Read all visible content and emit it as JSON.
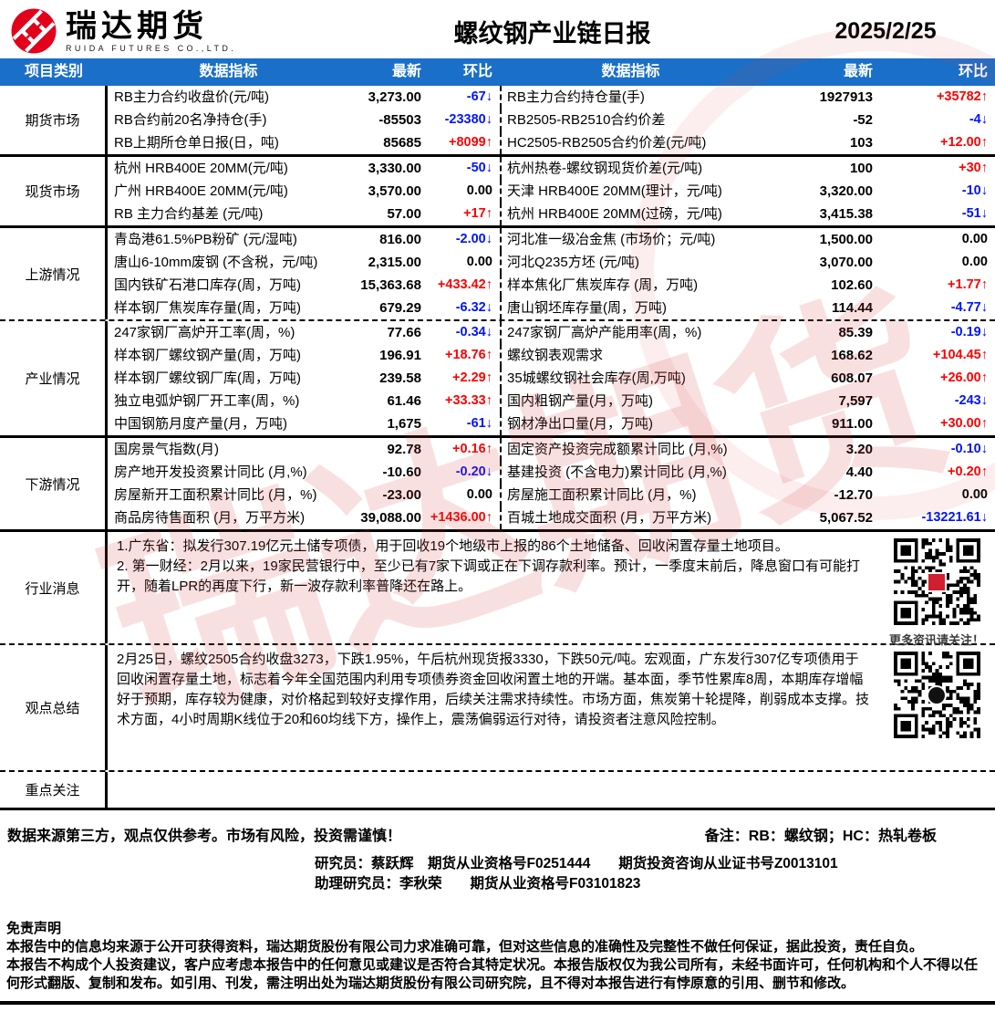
{
  "colors": {
    "header_bg": "#1a6fc9",
    "up_red": "#fe0000",
    "down_blue": "#0014ff",
    "logo_red": "#e3001b"
  },
  "header": {
    "brand_name": "瑞达期货",
    "brand_sub": "RUIDA FUTURES CO.,LTD.",
    "title": "螺纹钢产业链日报",
    "date": "2025/2/25"
  },
  "watermark": "瑞达期货",
  "table": {
    "columns": {
      "category": "项目类别",
      "indicator": "数据指标",
      "latest": "最新",
      "change": "环比"
    },
    "sections": [
      {
        "name": "期货市场",
        "rows": [
          {
            "left": {
              "label": "RB主力合约收盘价(元/吨)",
              "value": "3,273.00",
              "change": "-67↓",
              "dir": "down"
            },
            "right": {
              "label": "RB主力合约持仓量(手)",
              "value": "1927913",
              "change": "+35782↑",
              "dir": "up"
            }
          },
          {
            "left": {
              "label": "RB合约前20名净持仓(手)",
              "value": "-85503",
              "change": "-23380↓",
              "dir": "down"
            },
            "right": {
              "label": "RB2505-RB2510合约价差",
              "value": "-52",
              "change": "-4↓",
              "dir": "down"
            }
          },
          {
            "left": {
              "label": "RB上期所仓单日报(日，吨)",
              "value": "85685",
              "change": "+8099↑",
              "dir": "up"
            },
            "right": {
              "label": "HC2505-RB2505合约价差(元/吨)",
              "value": "103",
              "change": "+12.00↑",
              "dir": "up"
            }
          }
        ]
      },
      {
        "name": "现货市场",
        "rows": [
          {
            "left": {
              "label": "杭州 HRB400E 20MM(元/吨)",
              "value": "3,330.00",
              "change": "-50↓",
              "dir": "down"
            },
            "right": {
              "label": "杭州热卷-螺纹钢现货价差(元/吨)",
              "value": "100",
              "change": "+30↑",
              "dir": "up"
            }
          },
          {
            "left": {
              "label": "广州 HRB400E 20MM(元/吨)",
              "value": "3,570.00",
              "change": "0.00",
              "dir": "flat"
            },
            "right": {
              "label": "天津 HRB400E 20MM(理计，元/吨)",
              "value": "3,320.00",
              "change": "-10↓",
              "dir": "down"
            }
          },
          {
            "left": {
              "label": "RB 主力合约基差 (元/吨)",
              "value": "57.00",
              "change": "+17↑",
              "dir": "up"
            },
            "right": {
              "label": "杭州 HRB400E 20MM(过磅，元/吨)",
              "value": "3,415.38",
              "change": "-51↓",
              "dir": "down"
            }
          }
        ]
      },
      {
        "name": "上游情况",
        "rows": [
          {
            "left": {
              "label": "青岛港61.5%PB粉矿 (元/湿吨)",
              "value": "816.00",
              "change": "-2.00↓",
              "dir": "down"
            },
            "right": {
              "label": "河北准一级冶金焦 (市场价；元/吨)",
              "value": "1,500.00",
              "change": "0.00",
              "dir": "flat"
            }
          },
          {
            "left": {
              "label": "唐山6-10mm废钢 (不含税，元/吨)",
              "value": "2,315.00",
              "change": "0.00",
              "dir": "flat"
            },
            "right": {
              "label": "河北Q235方坯 (元/吨)",
              "value": "3,070.00",
              "change": "0.00",
              "dir": "flat"
            }
          },
          {
            "left": {
              "label": "国内铁矿石港口库存(周，万吨)",
              "value": "15,363.68",
              "change": "+433.42↑",
              "dir": "up"
            },
            "right": {
              "label": "样本焦化厂焦炭库存 (周，万吨)",
              "value": "102.60",
              "change": "+1.77↑",
              "dir": "up"
            }
          },
          {
            "left": {
              "label": "样本钢厂焦炭库存量(周，万吨)",
              "value": "679.29",
              "change": "-6.32↓",
              "dir": "down"
            },
            "right": {
              "label": "唐山钢坯库存量(周，万吨)",
              "value": "114.44",
              "change": "-4.77↓",
              "dir": "down"
            }
          }
        ]
      },
      {
        "name": "产业情况",
        "rows": [
          {
            "left": {
              "label": "247家钢厂高炉开工率(周，%)",
              "value": "77.66",
              "change": "-0.34↓",
              "dir": "down"
            },
            "right": {
              "label": "247家钢厂高炉产能用率(周，%)",
              "value": "85.39",
              "change": "-0.19↓",
              "dir": "down"
            }
          },
          {
            "left": {
              "label": "样本钢厂螺纹钢产量(周，万吨)",
              "value": "196.91",
              "change": "+18.76↑",
              "dir": "up"
            },
            "right": {
              "label": "螺纹钢表观需求",
              "value": "168.62",
              "change": "+104.45↑",
              "dir": "up"
            }
          },
          {
            "left": {
              "label": "样本钢厂螺纹钢厂库(周，万吨)",
              "value": "239.58",
              "change": "+2.29↑",
              "dir": "up"
            },
            "right": {
              "label": "35城螺纹钢社会库存(周,万吨)",
              "value": "608.07",
              "change": "+26.00↑",
              "dir": "up"
            }
          },
          {
            "left": {
              "label": "独立电弧炉钢厂开工率(周，%)",
              "value": "61.46",
              "change": "+33.33↑",
              "dir": "up"
            },
            "right": {
              "label": "国内粗钢产量(月，万吨)",
              "value": "7,597",
              "change": "-243↓",
              "dir": "down"
            }
          },
          {
            "left": {
              "label": "中国钢筋月度产量(月，万吨)",
              "value": "1,675",
              "change": "-61↓",
              "dir": "down"
            },
            "right": {
              "label": "钢材净出口量(月，万吨)",
              "value": "911.00",
              "change": "+30.00↑",
              "dir": "up"
            }
          }
        ]
      },
      {
        "name": "下游情况",
        "rows": [
          {
            "left": {
              "label": "国房景气指数(月)",
              "value": "92.78",
              "change": "+0.16↑",
              "dir": "up"
            },
            "right": {
              "label": "固定资产投资完成额累计同比 (月,%)",
              "value": "3.20",
              "change": "-0.10↓",
              "dir": "down"
            }
          },
          {
            "left": {
              "label": "房产地开发投资累计同比 (月,%)",
              "value": "-10.60",
              "change": "-0.20↓",
              "dir": "down"
            },
            "right": {
              "label": "基建投资 (不含电力)累计同比 (月,%)",
              "value": "4.40",
              "change": "+0.20↑",
              "dir": "up"
            }
          },
          {
            "left": {
              "label": "房屋新开工面积累计同比 (月，%)",
              "value": "-23.00",
              "change": "0.00",
              "dir": "flat"
            },
            "right": {
              "label": "房屋施工面积累计同比 (月，%)",
              "value": "-12.70",
              "change": "0.00",
              "dir": "flat"
            }
          },
          {
            "left": {
              "label": "商品房待售面积 (月，万平方米)",
              "value": "39,088.00",
              "change": "+1436.00↑",
              "dir": "up"
            },
            "right": {
              "label": "百城土地成交面积 (月，万平方米)",
              "value": "5,067.52",
              "change": "-13221.61↓",
              "dir": "down"
            }
          }
        ]
      }
    ]
  },
  "messages": {
    "industry_news": {
      "category": "行业消息",
      "text": "1.广东省：拟发行307.19亿元土储专项债，用于回收19个地级市上报的86个土地储备、回收闲置存量土地项目。\n2. 第一财经：2月以来，19家民营银行中，至少已有7家下调或正在下调存款利率。预计，一季度末前后，降息窗口有可能打开，随着LPR的再度下行，新一波存款利率普降还在路上。",
      "qr_caption": "更多资讯请关注！"
    },
    "summary": {
      "category": "观点总结",
      "text": "2月25日，螺纹2505合约收盘3273，下跌1.95%，午后杭州现货报3330，下跌50元/吨。宏观面，广东发行307亿专项债用于回收闲置存量土地，标志着今年全国范围内利用专项债券资金回收闲置土地的开端。基本面，季节性累库8周，本期库存增幅好于预期，库存较为健康，对价格起到较好支撑作用，后续关注需求持续性。市场方面，焦炭第十轮提降，削弱成本支撑。技术方面，4小时周期K线位于20和60均线下方，操作上，震荡偏弱运行对待，请投资者注意风险控制。"
    },
    "focus": {
      "category": "重点关注",
      "text": ""
    }
  },
  "footer": {
    "source_note": "数据来源第三方，观点仅供参考。市场有风险，投资需谨慎！",
    "remark": "备注：RB：螺纹钢；HC：热轧卷板",
    "researcher_line": "研究员：蔡跃辉　期货从业资格号F0251444　　期货投资咨询从业证书号Z0013101",
    "assistant_line": "助理研究员：李秋荣　　期货从业资格号F03101823",
    "disclaimer_title": "免责声明",
    "disclaimer_p1": "本报告中的信息均来源于公开可获得资料，瑞达期货股份有限公司力求准确可靠，但对这些信息的准确性及完整性不做任何保证，据此投资，责任自负。",
    "disclaimer_p2": "本报告不构成个人投资建议，客户应考虑本报告中的任何意见或建议是否符合其特定状况。本报告版权仅为我公司所有，未经书面许可，任何机构和个人不得以任何形式翻版、复制和发布。如引用、刊发，需注明出处为瑞达期货股份有限公司研究院，且不得对本报告进行有悖原意的引用、删节和修改。"
  }
}
